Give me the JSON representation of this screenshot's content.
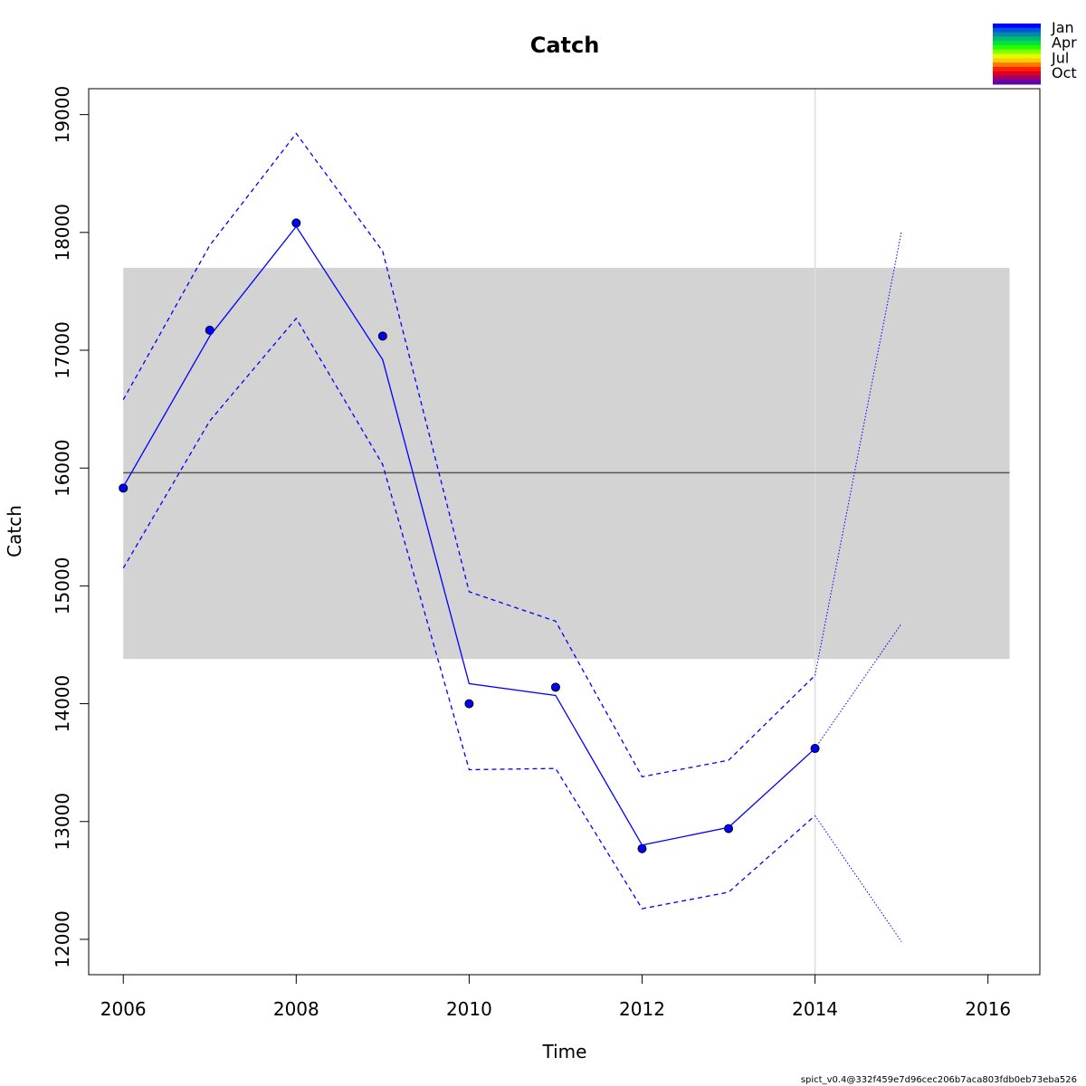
{
  "chart_data": {
    "type": "line",
    "title": "Catch",
    "xlabel": "Time",
    "ylabel": "Catch",
    "xlim": [
      2005.6,
      2016.6
    ],
    "ylim": [
      11700,
      19220
    ],
    "x_ticks": [
      2006,
      2008,
      2010,
      2012,
      2014,
      2016
    ],
    "y_ticks": [
      12000,
      13000,
      14000,
      15000,
      16000,
      17000,
      18000,
      19000
    ],
    "grid": false,
    "reference_band": {
      "x": [
        2006,
        2016.25
      ],
      "y_low": 14380,
      "y_high": 17700,
      "color": "#d3d3d3"
    },
    "reference_line": {
      "y": 15960,
      "x": [
        2006,
        2016.25
      ],
      "color": "#555555"
    },
    "vertical_line": {
      "x": 2014,
      "color": "#dddddd"
    },
    "series": [
      {
        "style": "points",
        "color": "#0000ff",
        "x": [
          2006,
          2007,
          2008,
          2009,
          2010,
          2011,
          2012,
          2013,
          2014
        ],
        "values": [
          15830,
          17170,
          18080,
          17120,
          14000,
          14140,
          12770,
          12940,
          13620
        ]
      },
      {
        "style": "solid",
        "color": "#0000ff",
        "x": [
          2006,
          2007,
          2008,
          2009,
          2010,
          2011,
          2012,
          2013,
          2014
        ],
        "values": [
          15840,
          17120,
          18050,
          16920,
          14170,
          14070,
          12800,
          12950,
          13620
        ]
      },
      {
        "style": "dashed",
        "color": "#0000ff",
        "x": [
          2006,
          2007,
          2008,
          2009,
          2010,
          2011,
          2012,
          2013,
          2014
        ],
        "values": [
          16580,
          17890,
          18840,
          17840,
          14950,
          14700,
          13380,
          13520,
          14240
        ]
      },
      {
        "style": "dashed",
        "color": "#0000ff",
        "x": [
          2006,
          2007,
          2008,
          2009,
          2010,
          2011,
          2012,
          2013,
          2014
        ],
        "values": [
          15150,
          16400,
          17270,
          16030,
          13440,
          13450,
          12260,
          12400,
          13050
        ]
      },
      {
        "style": "dotted",
        "color": "#0000ff",
        "x": [
          2014,
          2015
        ],
        "values": [
          13620,
          14680
        ]
      },
      {
        "style": "dotted",
        "color": "#0000ff",
        "x": [
          2014,
          2015
        ],
        "values": [
          14240,
          18010
        ]
      },
      {
        "style": "dotted",
        "color": "#0000ff",
        "x": [
          2014,
          2015
        ],
        "values": [
          13050,
          11980
        ]
      }
    ],
    "legend": {
      "position": "top-right",
      "labels": [
        "Jan",
        "Apr",
        "Jul",
        "Oct"
      ],
      "colors": [
        "#0000ff",
        "#0055dd",
        "#008aa8",
        "#00b870",
        "#00e040",
        "#22ff00",
        "#88ff00",
        "#ddff00",
        "#ffcc00",
        "#ff7700",
        "#ff2200",
        "#dd0022",
        "#a0006a",
        "#6600aa"
      ]
    }
  },
  "footer": "spict_v0.4@332f459e7d96cec206b7aca803fdb0eb73eba526"
}
